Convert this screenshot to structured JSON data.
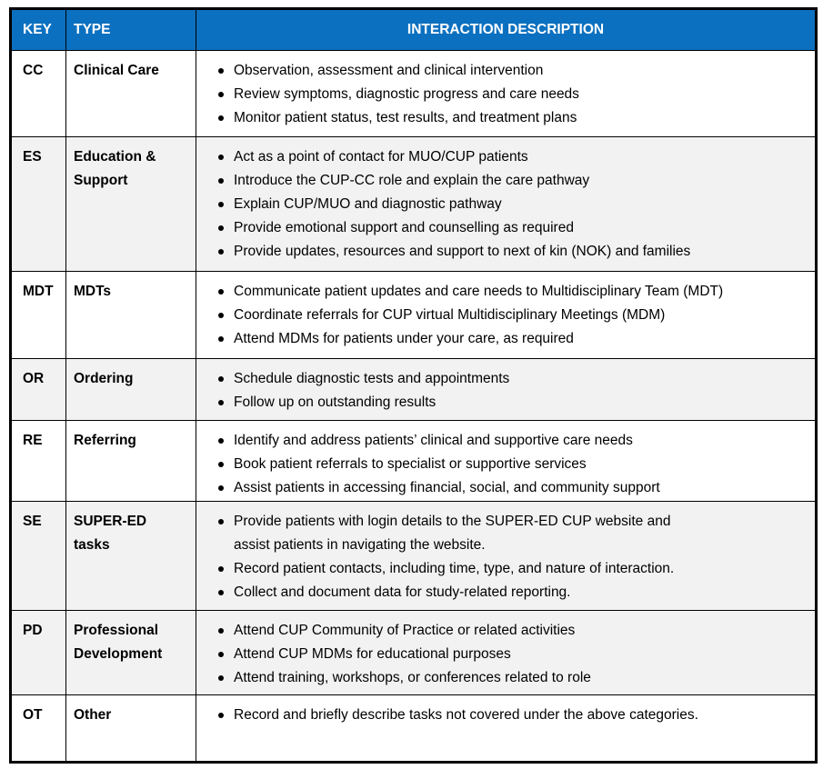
{
  "colors": {
    "header_bg": "#0B70C0",
    "header_text": "#FFFFFF",
    "shaded_row_bg": "#F2F2F2",
    "row_bg": "#FFFFFF",
    "border": "#000000",
    "body_text": "#000000"
  },
  "table": {
    "header": {
      "key": "KEY",
      "type": "TYPE",
      "description": "INTERACTION DESCRIPTION"
    },
    "rows": [
      {
        "key": "CC",
        "type": "Clinical Care",
        "shaded": false,
        "items": [
          "Observation, assessment and clinical intervention",
          "Review symptoms, diagnostic progress and care needs",
          "Monitor patient status, test results, and treatment plans"
        ]
      },
      {
        "key": "ES",
        "type": "Education &\nSupport",
        "shaded": true,
        "items": [
          "Act as a point of contact for MUO/CUP patients",
          "Introduce the CUP-CC role and explain the care pathway",
          "Explain CUP/MUO and diagnostic pathway",
          "Provide emotional support and counselling as required",
          "Provide updates, resources and support to next of kin (NOK) and families"
        ]
      },
      {
        "key": "MDT",
        "type": "MDTs",
        "shaded": false,
        "items": [
          "Communicate patient updates and care needs to Multidisciplinary Team (MDT)",
          "Coordinate referrals for CUP virtual Multidisciplinary Meetings (MDM)",
          "Attend MDMs for patients under your care, as required"
        ]
      },
      {
        "key": "OR",
        "type": "Ordering",
        "shaded": true,
        "items": [
          "Schedule diagnostic tests and appointments",
          "Follow up on outstanding results"
        ]
      },
      {
        "key": "RE",
        "type": "Referring",
        "shaded": false,
        "items": [
          "Identify and address patients’ clinical and supportive care needs",
          "Book patient referrals to specialist or supportive services",
          "Assist patients in accessing financial, social, and community support"
        ]
      },
      {
        "key": "SE",
        "type": "SUPER-ED\ntasks",
        "shaded": true,
        "items": [
          "Provide patients with login details to the SUPER-ED CUP website and\nassist patients in navigating the website.",
          "Record patient contacts, including time, type, and nature of interaction.",
          "Collect and document data for study-related reporting."
        ]
      },
      {
        "key": "PD",
        "type": "Professional\nDevelopment",
        "shaded": true,
        "items": [
          "Attend CUP Community of Practice or related activities",
          "Attend CUP MDMs for educational purposes",
          "Attend training, workshops, or conferences related to role"
        ]
      },
      {
        "key": "OT",
        "type": "Other",
        "shaded": false,
        "items": [
          "Record and briefly describe tasks not covered under the above categories."
        ]
      }
    ]
  }
}
